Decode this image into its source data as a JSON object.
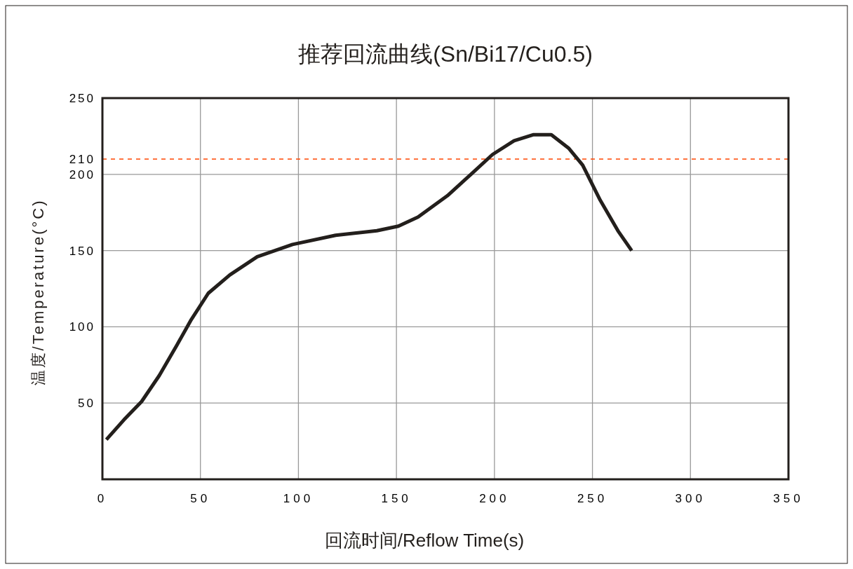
{
  "chart_data": {
    "type": "line",
    "title": "推荐回流曲线(Sn/Bi17/Cu0.5)",
    "xlabel": "回流时间/Reflow Time(s)",
    "ylabel": "温度/Temperature(°C)",
    "xlim": [
      0,
      350
    ],
    "xticks": [
      0,
      50,
      100,
      150,
      200,
      250,
      300,
      350
    ],
    "ylim": [
      0,
      250
    ],
    "yticks": [
      50,
      100,
      150,
      200,
      210,
      250
    ],
    "grid": true,
    "line_style": "solid",
    "marker": "none",
    "x": [
      2,
      11,
      20,
      29,
      38,
      45,
      54,
      65,
      79,
      97,
      119,
      140,
      151,
      161,
      176,
      188,
      199,
      210,
      220,
      229,
      238,
      245,
      254,
      263,
      270
    ],
    "series": [
      {
        "color": "#231f1c",
        "values": [
          26,
          39,
          51,
          68,
          88,
          104,
          122,
          134,
          146,
          154,
          160,
          163,
          166,
          172,
          186,
          200,
          213,
          222,
          226,
          226,
          217,
          206,
          183,
          163,
          150
        ]
      }
    ],
    "ref_lines": [
      {
        "axis": "y",
        "value": 210,
        "color": "#ff4500",
        "line_style": "dashed"
      }
    ]
  }
}
